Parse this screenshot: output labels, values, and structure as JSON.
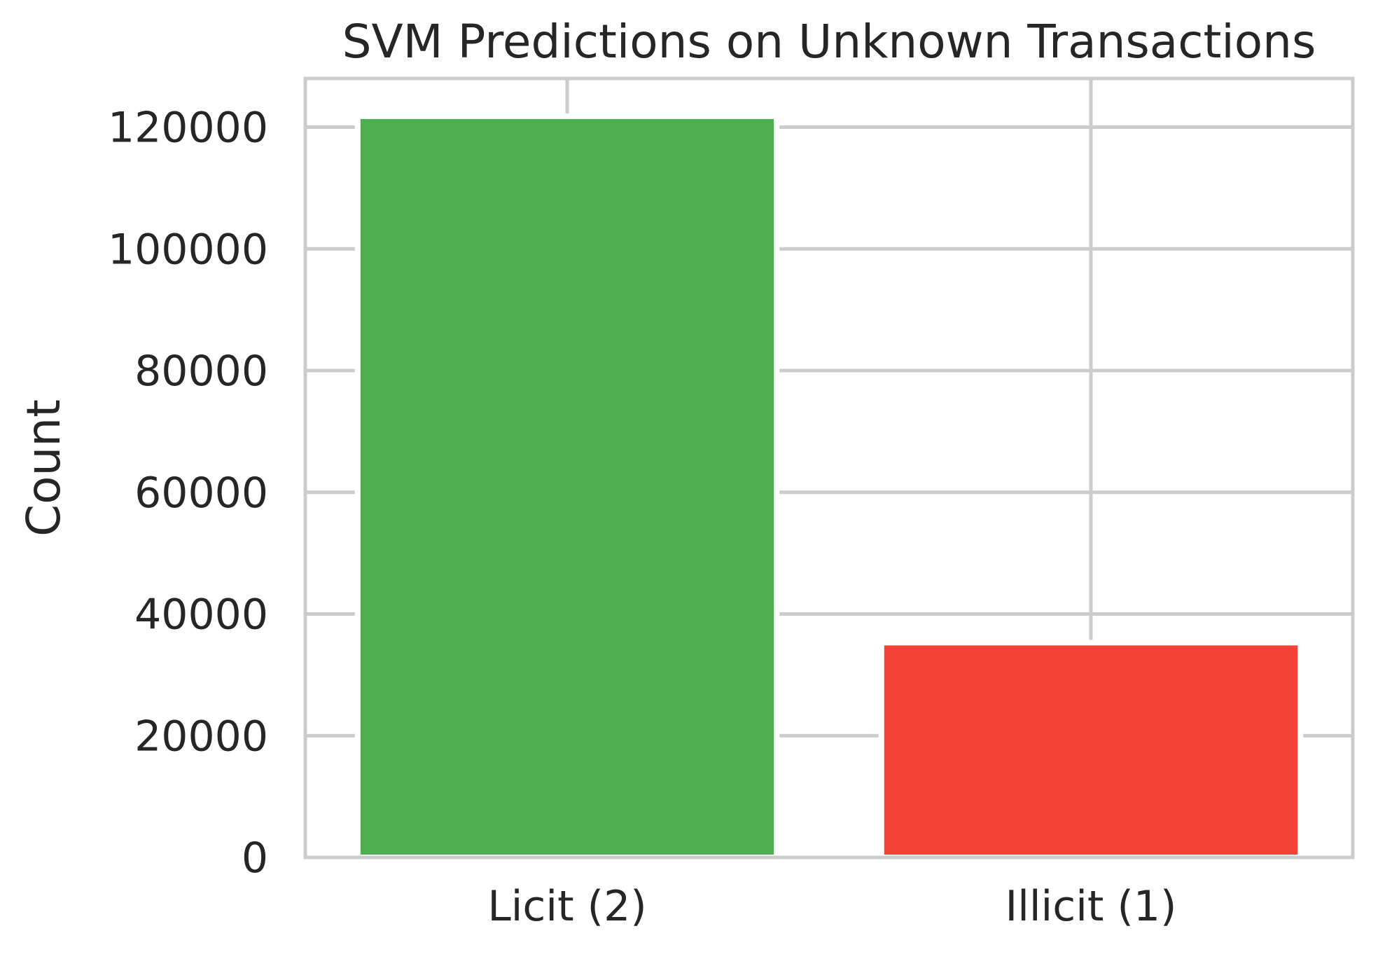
{
  "chart_data": {
    "type": "bar",
    "title": "SVM Predictions on Unknown Transactions",
    "xlabel": "",
    "ylabel": "Count",
    "categories": [
      "Licit (2)",
      "Illicit (1)"
    ],
    "values": [
      121800,
      35300
    ],
    "colors": [
      "#4caf50",
      "#f44336"
    ],
    "ylim": [
      0,
      128000
    ],
    "yticks": [
      0,
      20000,
      40000,
      60000,
      80000,
      100000,
      120000
    ],
    "grid": true,
    "legend": "none"
  }
}
